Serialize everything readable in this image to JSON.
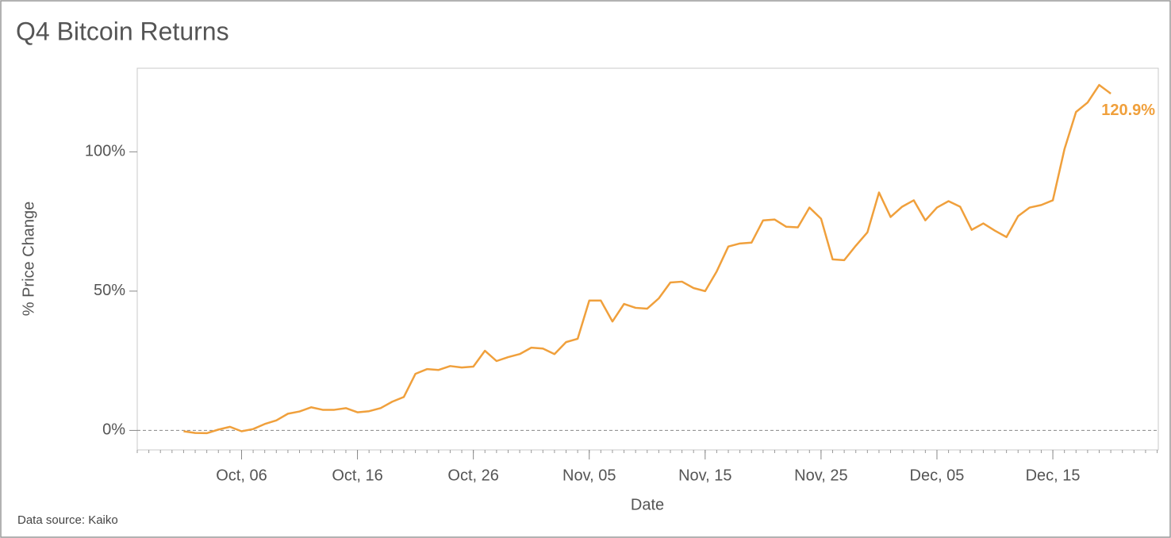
{
  "chart_data": {
    "type": "line",
    "title": "Q4 Bitcoin Returns",
    "source": "Data source: Kaiko",
    "x_label": "Date",
    "y_label": "% Price Change",
    "categories": [
      "Oct, 01",
      "Oct, 02",
      "Oct, 03",
      "Oct, 04",
      "Oct, 05",
      "Oct, 06",
      "Oct, 07",
      "Oct, 08",
      "Oct, 09",
      "Oct, 10",
      "Oct, 11",
      "Oct, 12",
      "Oct, 13",
      "Oct, 14",
      "Oct, 15",
      "Oct, 16",
      "Oct, 17",
      "Oct, 18",
      "Oct, 19",
      "Oct, 20",
      "Oct, 21",
      "Oct, 22",
      "Oct, 23",
      "Oct, 24",
      "Oct, 25",
      "Oct, 26",
      "Oct, 27",
      "Oct, 28",
      "Oct, 29",
      "Oct, 30",
      "Oct, 31",
      "Nov, 01",
      "Nov, 02",
      "Nov, 03",
      "Nov, 04",
      "Nov, 05",
      "Nov, 06",
      "Nov, 07",
      "Nov, 08",
      "Nov, 09",
      "Nov, 10",
      "Nov, 11",
      "Nov, 12",
      "Nov, 13",
      "Nov, 14",
      "Nov, 15",
      "Nov, 16",
      "Nov, 17",
      "Nov, 18",
      "Nov, 19",
      "Nov, 20",
      "Nov, 21",
      "Nov, 22",
      "Nov, 23",
      "Nov, 24",
      "Nov, 25",
      "Nov, 26",
      "Nov, 27",
      "Nov, 28",
      "Nov, 29",
      "Nov, 30",
      "Dec, 01",
      "Dec, 02",
      "Dec, 03",
      "Dec, 04",
      "Dec, 05",
      "Dec, 06",
      "Dec, 07",
      "Dec, 08",
      "Dec, 09",
      "Dec, 10",
      "Dec, 11",
      "Dec, 12",
      "Dec, 13",
      "Dec, 14",
      "Dec, 15",
      "Dec, 16",
      "Dec, 17",
      "Dec, 18",
      "Dec, 19",
      "Dec, 20"
    ],
    "values": [
      -0.3,
      -0.9,
      -1.0,
      0.3,
      1.3,
      -0.3,
      0.5,
      2.3,
      3.6,
      6,
      6.8,
      8.3,
      7.4,
      7.4,
      8,
      6.5,
      6.9,
      8,
      10.3,
      12,
      20.3,
      22,
      21.7,
      23.1,
      22.6,
      22.9,
      28.6,
      24.9,
      26.3,
      27.4,
      29.7,
      29.4,
      27.4,
      31.7,
      32.9,
      46.6,
      46.6,
      39.1,
      45.4,
      44,
      43.7,
      47.4,
      53.1,
      53.4,
      51.1,
      50,
      57.1,
      66,
      67.1,
      67.4,
      75.4,
      75.7,
      73.1,
      72.9,
      80,
      76,
      61.4,
      61.1,
      66.3,
      71.1,
      85.4,
      76.6,
      80.3,
      82.6,
      75.4,
      80,
      82.3,
      80.3,
      72,
      74.3,
      71.7,
      69.4,
      76.9,
      80,
      80.9,
      82.6,
      100.9,
      114.3,
      117.7,
      124,
      120.9
    ],
    "value_labels": [
      null,
      null,
      null,
      null,
      null,
      null,
      null,
      null,
      null,
      null,
      null,
      null,
      null,
      null,
      null,
      null,
      null,
      null,
      null,
      null,
      null,
      null,
      null,
      null,
      null,
      null,
      null,
      null,
      null,
      null,
      null,
      null,
      null,
      null,
      null,
      null,
      null,
      null,
      null,
      null,
      null,
      null,
      null,
      null,
      null,
      null,
      null,
      null,
      null,
      null,
      null,
      null,
      null,
      null,
      null,
      null,
      null,
      null,
      null,
      null,
      null,
      null,
      null,
      null,
      null,
      null,
      null,
      null,
      null,
      null,
      null,
      null,
      null,
      null,
      null,
      null,
      null,
      null,
      null,
      null,
      "120.9%"
    ],
    "color": "#f0a03c",
    "xticks": [
      "Oct, 06",
      "Oct, 16",
      "Oct, 26",
      "Nov, 05",
      "Nov, 15",
      "Nov, 25",
      "Dec, 05",
      "Dec, 15"
    ],
    "ylim": [
      -7,
      130
    ],
    "yticks": [
      {
        "value": 0,
        "label": "0%"
      },
      {
        "value": 50,
        "label": "50%"
      },
      {
        "value": 100,
        "label": "100%"
      }
    ],
    "reference_line": 0
  }
}
